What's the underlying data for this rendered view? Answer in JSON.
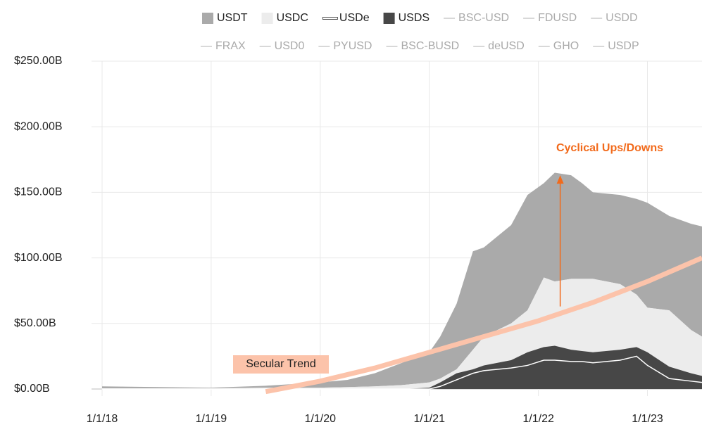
{
  "chart_data": {
    "type": "stacked_area",
    "x": [
      2018,
      2019,
      2019.5,
      2020,
      2020.25,
      2020.5,
      2020.75,
      2021,
      2021.1,
      2021.25,
      2021.4,
      2021.5,
      2021.75,
      2021.9,
      2022.05,
      2022.15,
      2022.3,
      2022.4,
      2022.5,
      2022.75,
      2022.9,
      2023,
      2023.2,
      2023.4,
      2023.5
    ],
    "series": [
      {
        "name": "USDT",
        "color": "#aaaaaa",
        "kind": "area",
        "values": [
          1.5,
          0.5,
          1.5,
          4,
          5.5,
          10,
          17,
          23,
          32,
          50,
          75,
          68,
          75,
          88,
          72,
          83,
          79,
          73,
          66,
          68,
          73,
          80,
          72,
          81,
          84
        ]
      },
      {
        "name": "USDC",
        "color": "#ececec",
        "kind": "area",
        "values": [
          0.5,
          0.5,
          1,
          1,
          1.5,
          2,
          3,
          4,
          3,
          3,
          15,
          22,
          28,
          32,
          53,
          49,
          54,
          55,
          56,
          50,
          40,
          34,
          43,
          33,
          30
        ]
      },
      {
        "name": "USDe",
        "color": "#ffffff",
        "kind": "line",
        "values": [
          0,
          0,
          0,
          0,
          0,
          0,
          0,
          0,
          2,
          7,
          12,
          14,
          16,
          18,
          22,
          22,
          21,
          21,
          20,
          22,
          25,
          18,
          8,
          6,
          5
        ]
      },
      {
        "name": "USDS",
        "color": "#474747",
        "kind": "area",
        "values": [
          0,
          0,
          0,
          0,
          0,
          0,
          0,
          1,
          5,
          12,
          15,
          18,
          22,
          28,
          32,
          33,
          30,
          29,
          28,
          30,
          32,
          28,
          17,
          12,
          10
        ]
      },
      {
        "name": "BSC-USD",
        "color": "#cccccc",
        "kind": "line"
      },
      {
        "name": "FDUSD",
        "color": "#cccccc",
        "kind": "line"
      },
      {
        "name": "USDD",
        "color": "#cccccc",
        "kind": "line"
      },
      {
        "name": "FRAX",
        "color": "#cccccc",
        "kind": "line"
      },
      {
        "name": "USD0",
        "color": "#cccccc",
        "kind": "line"
      },
      {
        "name": "PYUSD",
        "color": "#cccccc",
        "kind": "line"
      },
      {
        "name": "BSC-BUSD",
        "color": "#cccccc",
        "kind": "line"
      },
      {
        "name": "deUSD",
        "color": "#cccccc",
        "kind": "line"
      },
      {
        "name": "GHO",
        "color": "#cccccc",
        "kind": "line"
      },
      {
        "name": "USDP",
        "color": "#cccccc",
        "kind": "line"
      }
    ],
    "xlim": [
      2017.9,
      2023.5
    ],
    "xticks": [
      {
        "value": 2018,
        "label": "1/1/18"
      },
      {
        "value": 2019,
        "label": "1/1/19"
      },
      {
        "value": 2020,
        "label": "1/1/20"
      },
      {
        "value": 2021,
        "label": "1/1/21"
      },
      {
        "value": 2022,
        "label": "1/1/22"
      },
      {
        "value": 2023,
        "label": "1/1/23"
      }
    ],
    "ylim": [
      0,
      250
    ],
    "yticks": [
      {
        "value": 0,
        "label": "$0.00B"
      },
      {
        "value": 50,
        "label": "$50.00B"
      },
      {
        "value": 100,
        "label": "$100.00B"
      },
      {
        "value": 150,
        "label": "$150.00B"
      },
      {
        "value": 200,
        "label": "$200.00B"
      },
      {
        "value": 250,
        "label": "$250.00B"
      }
    ],
    "grid": true,
    "trend": {
      "label": "Secular Trend",
      "color": "#fcc3aa",
      "x": [
        2019.5,
        2020,
        2020.5,
        2021,
        2021.5,
        2022,
        2022.5,
        2023,
        2023.5
      ],
      "values": [
        -2,
        6,
        16,
        28,
        40,
        52,
        66,
        82,
        100
      ]
    },
    "arrow": {
      "label": "Cyclical Ups/Downs",
      "color": "#f26a1b",
      "x": 2022.2,
      "from": 63,
      "to": 163
    }
  }
}
